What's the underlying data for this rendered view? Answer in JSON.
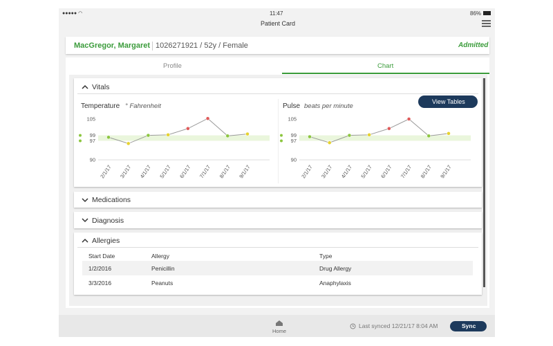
{
  "status_bar": {
    "time": "11:47",
    "battery": "86%"
  },
  "header": {
    "title": "Patient Card"
  },
  "patient": {
    "name": "MacGregor, Margaret",
    "details": "1026271921 / 52y / Female",
    "status": "Admitted"
  },
  "tabs": [
    "Profile",
    "Chart"
  ],
  "sections": {
    "vitals": "Vitals",
    "medications": "Medications",
    "diagnosis": "Diagnosis",
    "allergies": "Allergies"
  },
  "view_tables": "View Tables",
  "chart_data": [
    {
      "type": "line",
      "title": "Temperature",
      "subtitle": "° Fahrenheit",
      "categories": [
        "2/1/17",
        "3/1/17",
        "4/1/17",
        "5/1/17",
        "6/1/17",
        "7/1/17",
        "8/1/17",
        "9/1/17"
      ],
      "values": [
        98.3,
        96,
        99,
        99.2,
        101.5,
        105.2,
        98.8,
        99.5
      ],
      "color": "#999999",
      "point_colors": [
        "#8cc63f",
        "#e6d22e",
        "#8cc63f",
        "#e6d22e",
        "#e05a5a",
        "#e05a5a",
        "#8cc63f",
        "#e6d22e"
      ],
      "ylim": [
        90,
        105
      ],
      "yticks": [
        90,
        97,
        99,
        105
      ],
      "normal_range": [
        97,
        99
      ],
      "band_color": "#eaf6dc"
    },
    {
      "type": "line",
      "title": "Pulse",
      "subtitle": "beats per minute",
      "categories": [
        "2/1/17",
        "3/1/17",
        "4/1/17",
        "5/1/17",
        "6/1/17",
        "7/1/17",
        "8/1/17",
        "9/1/17"
      ],
      "values": [
        98.5,
        96.3,
        99,
        99.2,
        101.5,
        105,
        98.8,
        99.7
      ],
      "color": "#999999",
      "point_colors": [
        "#8cc63f",
        "#e6d22e",
        "#8cc63f",
        "#e6d22e",
        "#e05a5a",
        "#e05a5a",
        "#8cc63f",
        "#e6d22e"
      ],
      "ylim": [
        90,
        105
      ],
      "yticks": [
        90,
        97,
        99,
        105
      ],
      "normal_range": [
        97,
        99
      ],
      "band_color": "#eaf6dc"
    }
  ],
  "table": {
    "header": [
      "Start Date",
      "Allergy",
      "Type"
    ],
    "rows": [
      [
        "1/2/2016",
        "Penicillin",
        "Drug Allergy"
      ],
      [
        "3/3/2016",
        "Peanuts",
        "Anaphylaxis"
      ]
    ]
  },
  "footer": {
    "home": "Home",
    "last_synced": "Last synced 12/21/17 8:04 AM",
    "sync": "Sync"
  }
}
